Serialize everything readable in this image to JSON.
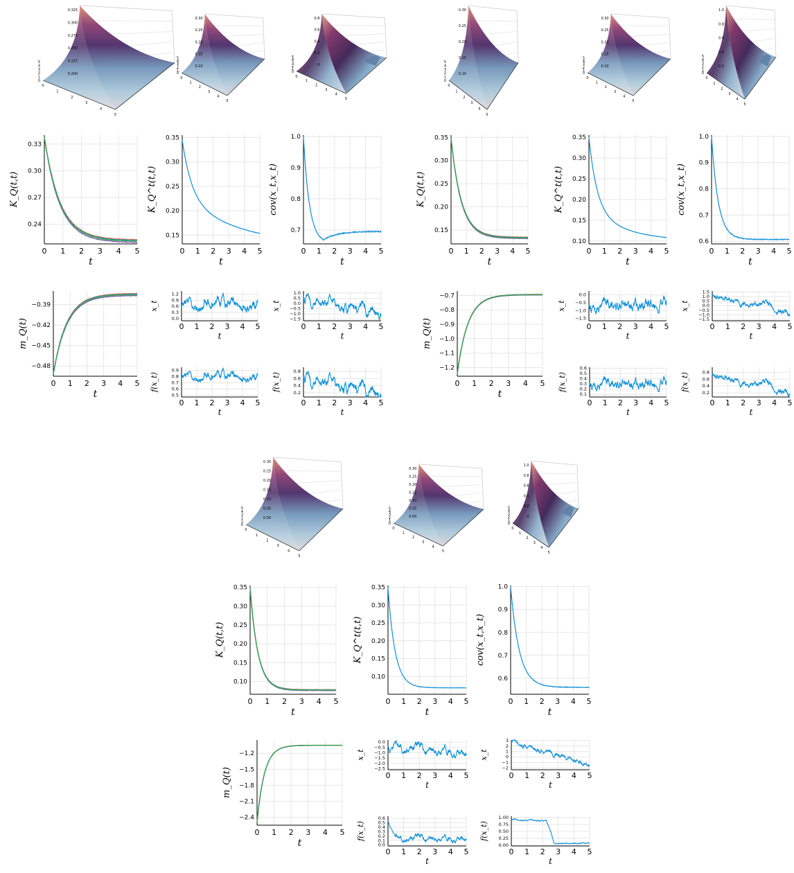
{
  "chart_data": {
    "colors": {
      "blue": "#0f8fd8",
      "orange": "#e26f46",
      "green": "#3da44d",
      "purple": "#7c5fb0",
      "olive": "#7a8a40",
      "grid": "#e6e6e6"
    },
    "surfaces": [
      {
        "id": "s1",
        "zticks": [
          "0.325",
          "0.300",
          "0.275",
          "0.250",
          "0.225",
          "0.200"
        ],
        "xticks": [
          "0",
          "1",
          "2",
          "3",
          "4",
          "5"
        ],
        "yticks": [
          "0",
          "1",
          "2",
          "3",
          "4",
          "5"
        ]
      },
      {
        "id": "s2",
        "zticks": [
          "0.30",
          "0.25",
          "0.20",
          "0.15",
          "0.10"
        ],
        "xticks": [
          "0",
          "1",
          "2",
          "3",
          "4",
          "5"
        ],
        "yticks": [
          "0",
          "1",
          "2",
          "3",
          "4",
          "5"
        ]
      },
      {
        "id": "s3",
        "zticks": [
          "0.8",
          "0.6",
          "0.4",
          "0.2",
          "0"
        ],
        "xticks": [
          "0",
          "1",
          "2",
          "3",
          "4",
          "5"
        ],
        "yticks": [
          "0",
          "1",
          "2",
          "3",
          "4",
          "5"
        ]
      },
      {
        "id": "s4",
        "zticks": [
          "0.30",
          "0.25",
          "0.20",
          "0.15",
          "0.10"
        ],
        "xticks": [
          "0",
          "1",
          "2",
          "3",
          "4",
          "5"
        ],
        "yticks": [
          "0",
          "1",
          "2",
          "3",
          "4",
          "5"
        ]
      },
      {
        "id": "s5",
        "zticks": [
          "0.30",
          "0.25",
          "0.20",
          "0.15",
          "0.10"
        ],
        "xticks": [
          "0",
          "1",
          "2",
          "3",
          "4",
          "5"
        ],
        "yticks": [
          "0",
          "1",
          "2",
          "3",
          "4",
          "5"
        ]
      },
      {
        "id": "s6",
        "zticks": [
          "1.0",
          "0.8",
          "0.6",
          "0.4",
          "0.2"
        ],
        "xticks": [
          "0",
          "1",
          "2",
          "3",
          "4",
          "5"
        ],
        "yticks": [
          "0",
          "1",
          "2",
          "3",
          "4",
          "5"
        ]
      },
      {
        "id": "s7",
        "zticks": [
          "0.30",
          "0.25",
          "0.20",
          "0.15",
          "0.10",
          "0.05",
          "0.00"
        ],
        "xticks": [
          "0",
          "1",
          "2",
          "3",
          "4",
          "5"
        ],
        "yticks": [
          "0",
          "1",
          "2",
          "3",
          "4",
          "5"
        ]
      },
      {
        "id": "s8",
        "zticks": [
          "0.30",
          "0.25",
          "0.20",
          "0.15",
          "0.10",
          "0.05",
          "0.00"
        ],
        "xticks": [
          "0",
          "1",
          "2",
          "3",
          "4",
          "5"
        ],
        "yticks": [
          "0",
          "1",
          "2",
          "3",
          "4",
          "5"
        ]
      },
      {
        "id": "s9",
        "zticks": [
          "1.0",
          "0.8",
          "0.6",
          "0.4",
          "0.2",
          "0"
        ],
        "xticks": [
          "0",
          "1",
          "2",
          "3",
          "4",
          "5"
        ],
        "yticks": [
          "0",
          "1",
          "2",
          "3",
          "4",
          "5"
        ]
      }
    ],
    "plots": [
      {
        "id": "p1",
        "type": "line",
        "ylabel": "K_Q(t,t)",
        "xlabel": "t",
        "xticks": [
          0,
          1,
          2,
          3,
          4,
          5
        ],
        "yticks": [
          0.24,
          0.27,
          0.3,
          0.33
        ],
        "ylim": [
          0.218,
          0.34
        ],
        "curve": "decay",
        "y0": 0.338,
        "yinf": 0.221,
        "rate": 1.2,
        "noise": 0.0004,
        "multi": true,
        "spread": 0.0015
      },
      {
        "id": "p2",
        "type": "line",
        "ylabel": "K_Q^t(t,t)",
        "xlabel": "t",
        "xticks": [
          0,
          1,
          2,
          3,
          4,
          5
        ],
        "yticks": [
          0.15,
          0.2,
          0.25,
          0.3,
          0.35
        ],
        "ylim": [
          0.132,
          0.355
        ],
        "curve": "decay2",
        "y0": 0.345,
        "yinf": 0.125,
        "rate": 1.6,
        "rate2": 0.25,
        "w": 0.55,
        "noise": 0.0003
      },
      {
        "id": "p3",
        "type": "line",
        "ylabel": "cov(x_t,x_t)",
        "xlabel": "t",
        "xticks": [
          0,
          1,
          2,
          3,
          4,
          5
        ],
        "yticks": [
          0.7,
          0.8,
          0.9,
          1.0
        ],
        "ylim": [
          0.655,
          1.005
        ],
        "curve": "dip",
        "y0": 1.0,
        "ymin": 0.668,
        "tmin": 1.3,
        "yend": 0.695,
        "rate": 2.6,
        "noise": 0.0015
      },
      {
        "id": "p4",
        "type": "line",
        "ylabel": "m_Q(t)",
        "xlabel": "t",
        "xticks": [
          0,
          1,
          2,
          3,
          4,
          5
        ],
        "yticks": [
          -0.48,
          -0.45,
          -0.42,
          -0.39
        ],
        "ylim": [
          -0.495,
          -0.37
        ],
        "curve": "rise",
        "y0": -0.492,
        "yinf": -0.375,
        "rate": 1.25,
        "noise": 0.0004,
        "multi": true,
        "spread": 0.0015
      },
      {
        "id": "p5",
        "type": "path",
        "ylabel": "x_t",
        "xlabel": "t",
        "xticks": [
          0,
          1,
          2,
          3,
          4,
          5
        ],
        "yticks": [
          0.0,
          0.3,
          0.6,
          0.9,
          1.2
        ],
        "ylim": [
          -0.1,
          1.35
        ],
        "base": 0.7,
        "amp": 0.32,
        "seed": 11
      },
      {
        "id": "p6",
        "type": "path",
        "ylabel": "x_t",
        "xlabel": "t",
        "xticks": [
          0,
          1,
          2,
          3,
          4,
          5
        ],
        "yticks": [
          -1.5,
          -1.0,
          -0.5,
          0.0,
          0.5,
          1.0
        ],
        "ylim": [
          -1.65,
          1.2
        ],
        "base": 0.2,
        "amp": 0.6,
        "seed": 23,
        "trend": -1.2
      },
      {
        "id": "p7",
        "type": "path",
        "ylabel": "f(x_t)",
        "xlabel": "t",
        "xticks": [
          0,
          1,
          2,
          3,
          4,
          5
        ],
        "yticks": [
          0.5,
          0.6,
          0.7,
          0.8,
          0.9
        ],
        "ylim": [
          0.47,
          0.95
        ],
        "base": 0.8,
        "amp": 0.08,
        "seed": 11
      },
      {
        "id": "p8",
        "type": "path",
        "ylabel": "f(x_t)",
        "xlabel": "t",
        "xticks": [
          0,
          1,
          2,
          3,
          4,
          5
        ],
        "yticks": [
          0.2,
          0.4,
          0.6,
          0.8
        ],
        "ylim": [
          0.08,
          0.92
        ],
        "base": 0.55,
        "amp": 0.2,
        "seed": 23,
        "trend": -0.4
      },
      {
        "id": "p9",
        "type": "line",
        "ylabel": "K_Q(t,t)",
        "xlabel": "t",
        "xticks": [
          0,
          1,
          2,
          3,
          4,
          5
        ],
        "yticks": [
          0.15,
          0.2,
          0.25,
          0.3,
          0.35
        ],
        "ylim": [
          0.12,
          0.355
        ],
        "curve": "decay",
        "y0": 0.35,
        "yinf": 0.133,
        "rate": 1.5,
        "noise": 0.0004,
        "multi": true,
        "spread": 0.0015
      },
      {
        "id": "p10",
        "type": "line",
        "ylabel": "K_Q^t(t,t)",
        "xlabel": "t",
        "xticks": [
          0,
          1,
          2,
          3,
          4,
          5
        ],
        "yticks": [
          0.1,
          0.15,
          0.2,
          0.25,
          0.3,
          0.35
        ],
        "ylim": [
          0.093,
          0.355
        ],
        "curve": "decay2",
        "y0": 0.35,
        "yinf": 0.098,
        "rate": 1.9,
        "rate2": 0.4,
        "w": 0.7,
        "noise": 0.0003
      },
      {
        "id": "p11",
        "type": "line",
        "ylabel": "cov(x_t,x_t)",
        "xlabel": "t",
        "xticks": [
          0,
          1,
          2,
          3,
          4,
          5
        ],
        "yticks": [
          0.6,
          0.7,
          0.8,
          0.9,
          1.0
        ],
        "ylim": [
          0.59,
          1.005
        ],
        "curve": "decay",
        "y0": 1.0,
        "yinf": 0.607,
        "rate": 2.3,
        "noise": 0.0015
      },
      {
        "id": "p12",
        "type": "line",
        "ylabel": "m_Q(t)",
        "xlabel": "t",
        "xticks": [
          0,
          1,
          2,
          3,
          4,
          5
        ],
        "yticks": [
          -1.2,
          -1.1,
          -1.0,
          -0.9,
          -0.8,
          -0.7
        ],
        "ylim": [
          -1.26,
          -0.67
        ],
        "curve": "rise",
        "y0": -1.245,
        "yinf": -0.695,
        "rate": 1.6,
        "noise": 0.0006,
        "multi": true,
        "spread": 0.002
      },
      {
        "id": "p13",
        "type": "path",
        "ylabel": "x_t",
        "xlabel": "t",
        "xticks": [
          0,
          1,
          2,
          3,
          4,
          5
        ],
        "yticks": [
          -1.5,
          -1.0,
          -0.5,
          0.0
        ],
        "ylim": [
          -1.65,
          0.25
        ],
        "base": -0.9,
        "amp": 0.45,
        "seed": 37,
        "trend": 0.5
      },
      {
        "id": "p14",
        "type": "path",
        "ylabel": "x_t",
        "xlabel": "t",
        "xticks": [
          0,
          1,
          2,
          3,
          4,
          5
        ],
        "yticks": [
          -1.5,
          -1.0,
          -0.5,
          0.0,
          0.5,
          1.0,
          1.5
        ],
        "ylim": [
          -1.65,
          1.6
        ],
        "base": 1.0,
        "amp": 0.4,
        "seed": 51,
        "trend": -1.8
      },
      {
        "id": "p15",
        "type": "path",
        "ylabel": "f(x_t)",
        "xlabel": "t",
        "xticks": [
          0,
          1,
          2,
          3,
          4,
          5
        ],
        "yticks": [
          0.1,
          0.2,
          0.3,
          0.4,
          0.5,
          0.6
        ],
        "ylim": [
          0.05,
          0.62
        ],
        "base": 0.25,
        "amp": 0.12,
        "seed": 37,
        "trend": 0.1
      },
      {
        "id": "p16",
        "type": "path",
        "ylabel": "f(x_t)",
        "xlabel": "t",
        "xticks": [
          0,
          1,
          2,
          3,
          4,
          5
        ],
        "yticks": [
          0.2,
          0.4,
          0.6,
          0.8
        ],
        "ylim": [
          0.08,
          0.95
        ],
        "base": 0.7,
        "amp": 0.12,
        "seed": 51,
        "trend": -0.5
      },
      {
        "id": "p17",
        "type": "line",
        "ylabel": "K_Q(t,t)",
        "xlabel": "t",
        "xticks": [
          0,
          1,
          2,
          3,
          4,
          5
        ],
        "yticks": [
          0.1,
          0.15,
          0.2,
          0.25,
          0.3,
          0.35
        ],
        "ylim": [
          0.066,
          0.355
        ],
        "curve": "decay",
        "y0": 0.35,
        "yinf": 0.077,
        "rate": 2.2,
        "noise": 0.0004,
        "multi": true,
        "spread": 0.0012
      },
      {
        "id": "p18",
        "type": "line",
        "ylabel": "K_Q^t(t,t)",
        "xlabel": "t",
        "xticks": [
          0,
          1,
          2,
          3,
          4,
          5
        ],
        "yticks": [
          0.1,
          0.15,
          0.2,
          0.25,
          0.3,
          0.35
        ],
        "ylim": [
          0.05,
          0.355
        ],
        "curve": "decay",
        "y0": 0.35,
        "yinf": 0.068,
        "rate": 2.2,
        "noise": 0.0004
      },
      {
        "id": "p19",
        "type": "line",
        "ylabel": "cov(x_t,x_t)",
        "xlabel": "t",
        "xticks": [
          0,
          1,
          2,
          3,
          4,
          5
        ],
        "yticks": [
          0.6,
          0.7,
          0.8,
          0.9,
          1.0
        ],
        "ylim": [
          0.53,
          1.005
        ],
        "curve": "decay",
        "y0": 1.0,
        "yinf": 0.56,
        "rate": 1.8,
        "noise": 0.0015
      },
      {
        "id": "p20",
        "type": "line",
        "ylabel": "m_Q(t)",
        "xlabel": "t",
        "xticks": [
          0,
          1,
          2,
          3,
          4,
          5
        ],
        "yticks": [
          -2.4,
          -2.1,
          -1.8,
          -1.5,
          -1.2
        ],
        "ylim": [
          -2.55,
          -0.95
        ],
        "curve": "rise",
        "y0": -2.5,
        "yinf": -1.05,
        "rate": 2.3,
        "noise": 0.0008,
        "multi": true,
        "spread": 0.002
      },
      {
        "id": "p21",
        "type": "path",
        "ylabel": "x_t",
        "xlabel": "t",
        "xticks": [
          0,
          1,
          2,
          3,
          4,
          5
        ],
        "yticks": [
          -2.5,
          -2.0,
          -1.5,
          -1.0,
          -0.5,
          0.0
        ],
        "ylim": [
          -2.6,
          0.2
        ],
        "base": -0.4,
        "amp": 0.45,
        "seed": 71,
        "trend": -0.6
      },
      {
        "id": "p22",
        "type": "path",
        "ylabel": "x_t",
        "xlabel": "t",
        "xticks": [
          0,
          1,
          2,
          3,
          4,
          5
        ],
        "yticks": [
          -2,
          -1,
          0,
          1,
          2,
          3
        ],
        "ylim": [
          -2.3,
          3.1
        ],
        "base": 2.6,
        "amp": 0.5,
        "seed": 83,
        "trend": -3.8
      },
      {
        "id": "p23",
        "type": "path",
        "ylabel": "f(x_t)",
        "xlabel": "t",
        "xticks": [
          0,
          1,
          2,
          3,
          4,
          5
        ],
        "yticks": [
          0.0,
          0.1,
          0.2,
          0.3,
          0.4,
          0.5,
          0.6
        ],
        "ylim": [
          -0.02,
          0.65
        ],
        "base": 0.15,
        "amp": 0.07,
        "seed": 71,
        "start": 0.55
      },
      {
        "id": "p24",
        "type": "path",
        "ylabel": "f(x_t)",
        "xlabel": "t",
        "xticks": [
          0,
          1,
          2,
          3,
          4,
          5
        ],
        "yticks": [
          0.0,
          0.25,
          0.5,
          0.75,
          1.0
        ],
        "ylim": [
          -0.03,
          1.05
        ],
        "base": 0.9,
        "amp": 0.06,
        "seed": 83,
        "step": 2.2,
        "after": 0.05
      }
    ]
  }
}
